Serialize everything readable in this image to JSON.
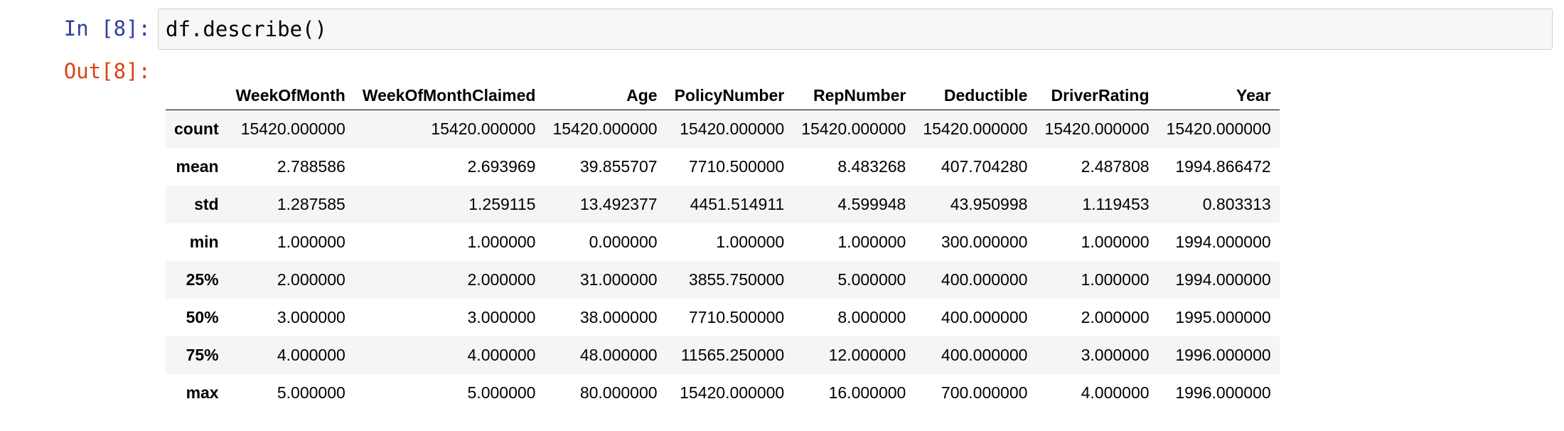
{
  "cell": {
    "in_prompt": "In [8]:",
    "code": "df.describe()",
    "out_prompt": "Out[8]:"
  },
  "table": {
    "columns": [
      "WeekOfMonth",
      "WeekOfMonthClaimed",
      "Age",
      "PolicyNumber",
      "RepNumber",
      "Deductible",
      "DriverRating",
      "Year"
    ],
    "rows": [
      {
        "index": "count",
        "values": [
          "15420.000000",
          "15420.000000",
          "15420.000000",
          "15420.000000",
          "15420.000000",
          "15420.000000",
          "15420.000000",
          "15420.000000"
        ]
      },
      {
        "index": "mean",
        "values": [
          "2.788586",
          "2.693969",
          "39.855707",
          "7710.500000",
          "8.483268",
          "407.704280",
          "2.487808",
          "1994.866472"
        ]
      },
      {
        "index": "std",
        "values": [
          "1.287585",
          "1.259115",
          "13.492377",
          "4451.514911",
          "4.599948",
          "43.950998",
          "1.119453",
          "0.803313"
        ]
      },
      {
        "index": "min",
        "values": [
          "1.000000",
          "1.000000",
          "0.000000",
          "1.000000",
          "1.000000",
          "300.000000",
          "1.000000",
          "1994.000000"
        ]
      },
      {
        "index": "25%",
        "values": [
          "2.000000",
          "2.000000",
          "31.000000",
          "3855.750000",
          "5.000000",
          "400.000000",
          "1.000000",
          "1994.000000"
        ]
      },
      {
        "index": "50%",
        "values": [
          "3.000000",
          "3.000000",
          "38.000000",
          "7710.500000",
          "8.000000",
          "400.000000",
          "2.000000",
          "1995.000000"
        ]
      },
      {
        "index": "75%",
        "values": [
          "4.000000",
          "4.000000",
          "48.000000",
          "11565.250000",
          "12.000000",
          "400.000000",
          "3.000000",
          "1996.000000"
        ]
      },
      {
        "index": "max",
        "values": [
          "5.000000",
          "5.000000",
          "80.000000",
          "15420.000000",
          "16.000000",
          "700.000000",
          "4.000000",
          "1996.000000"
        ]
      }
    ]
  }
}
